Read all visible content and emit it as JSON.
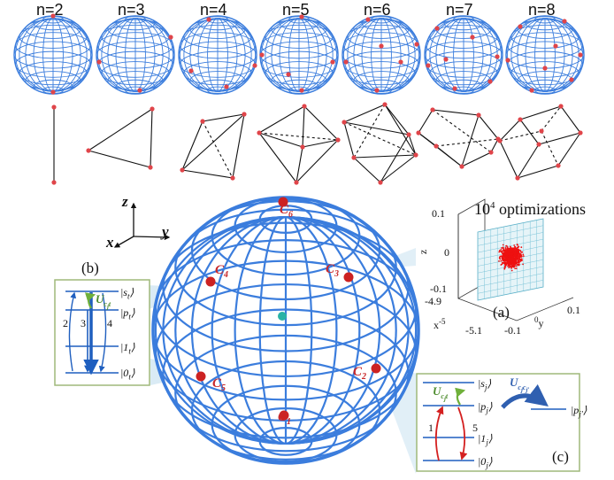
{
  "top_row": {
    "labels": [
      "n=2",
      "n=3",
      "n=4",
      "n=5",
      "n=6",
      "n=7",
      "n=8"
    ]
  },
  "axes": {
    "z": "z",
    "x": "x",
    "y": "y"
  },
  "main_sphere": {
    "points": [
      "C",
      "C",
      "C",
      "C",
      "C",
      "C"
    ],
    "subscripts": [
      "1",
      "2",
      "3",
      "4",
      "5",
      "6"
    ]
  },
  "panel_b": {
    "tag": "(b)",
    "levels": [
      "|s",
      "|p",
      "|1",
      "|0"
    ],
    "level_subs": [
      "t",
      "t",
      "t",
      "t"
    ],
    "arrow_labels": [
      "2",
      "3",
      "4"
    ],
    "coupling": "U",
    "coupling_sub": "c",
    "coupling_sub2": "j",
    "coupling_sub3": "t"
  },
  "panel_c": {
    "tag": "(c)",
    "levels": [
      "|s",
      "|p",
      "|1",
      "|0"
    ],
    "level_subs": [
      "j",
      "j",
      "j",
      "j"
    ],
    "right_level": "|p",
    "right_level_sub": "j′",
    "arrow_labels": [
      "1",
      "5"
    ],
    "coupling_left": "U",
    "coupling_left_sub": "c",
    "coupling_left_sub2": "j",
    "coupling_left_sub3": "t",
    "coupling_right": "U",
    "coupling_right_sub": "c",
    "coupling_right_sub2": "j",
    "coupling_right_sub3": "c",
    "coupling_right_sub4": "j′"
  },
  "panel_a": {
    "tag": "(a)",
    "title_base": "10",
    "title_exp": "4",
    "title_rest": " optimizations",
    "z_label": "z",
    "x_label": "x",
    "x_exp": "-5",
    "y_label": "y",
    "y_exp": "0",
    "z_ticks": [
      "0.1",
      "0",
      "-0.1"
    ],
    "x_ticks": [
      "-4.9",
      "-5.1"
    ],
    "y_ticks": [
      "-0.1",
      "0.1"
    ]
  },
  "colors": {
    "sphere": "#3b7ddd",
    "point": "#e0454a",
    "center": "#2ab3a6",
    "panel_border": "#9fb87a",
    "scatter": "#ee1111",
    "ring_left": "#6fb03a",
    "ring_right": "#2f5fb0",
    "arrow_red": "#d42020",
    "level": "#1f5fbf"
  }
}
